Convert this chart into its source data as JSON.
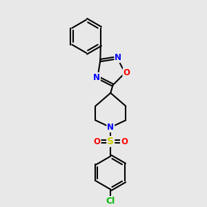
{
  "bg_color": "#e8e8e8",
  "bond_color": "#000000",
  "bond_width": 1.5,
  "atom_colors": {
    "N": "#0000ff",
    "O": "#ff0000",
    "S": "#cccc00",
    "Cl": "#00bb00",
    "C": "#000000"
  },
  "font_size_atom": 8.5
}
